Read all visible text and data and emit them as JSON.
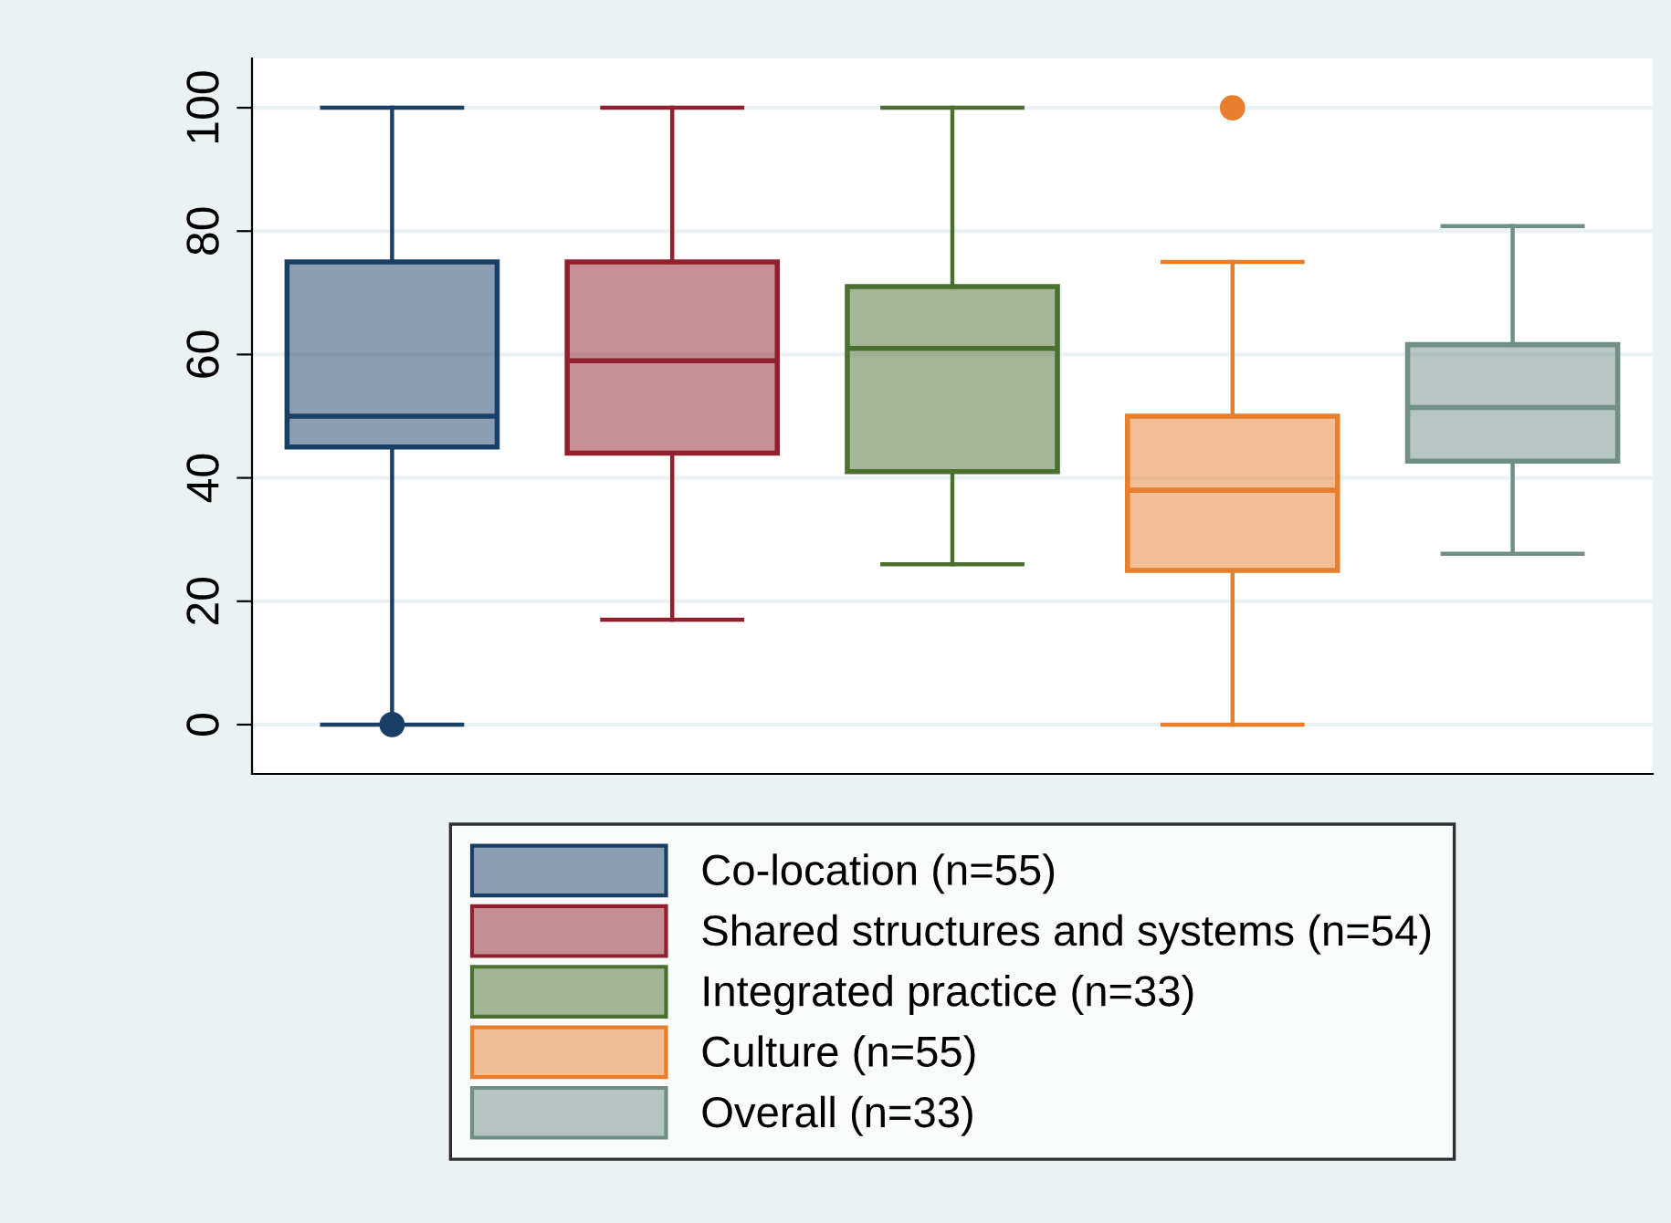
{
  "chart_data": {
    "type": "box",
    "categories": [
      null,
      null,
      null,
      null,
      null
    ],
    "series": [
      {
        "name": "Co-location (n=55)",
        "color": "#1a3f66",
        "boxes": [
          {
            "low": 0,
            "q1": 45,
            "median": 50,
            "q3": 75,
            "high": 100,
            "outliers": [
              0
            ]
          },
          null,
          null,
          null,
          null
        ]
      },
      {
        "name": "Shared structures and systems (n=54)",
        "color": "#90202e",
        "boxes": [
          null,
          {
            "low": 17,
            "q1": 44,
            "median": 59,
            "q3": 75,
            "high": 100
          },
          null,
          null,
          null
        ]
      },
      {
        "name": "Integrated practice (n=33)",
        "color": "#4a7030",
        "boxes": [
          null,
          null,
          {
            "low": 26,
            "q1": 41,
            "median": 61,
            "q3": 71,
            "high": 100
          },
          null,
          null
        ]
      },
      {
        "name": "Culture (n=55)",
        "color": "#e87e2c",
        "boxes": [
          null,
          null,
          null,
          {
            "low": 0,
            "q1": 25,
            "median": 38,
            "q3": 50,
            "high": 75,
            "outliers": [
              100
            ]
          },
          null
        ]
      },
      {
        "name": "Overall (n=33)",
        "color": "#6e8e86",
        "boxes": [
          null,
          null,
          null,
          null,
          {
            "low": 27.7,
            "q1": 42.7,
            "median": 51.4,
            "q3": 61.6,
            "high": 80.8
          }
        ]
      }
    ],
    "ylim": [
      -8,
      108
    ],
    "yticks": [
      0,
      20,
      40,
      60,
      80,
      100
    ],
    "grid": "y",
    "legend": "bottom"
  }
}
